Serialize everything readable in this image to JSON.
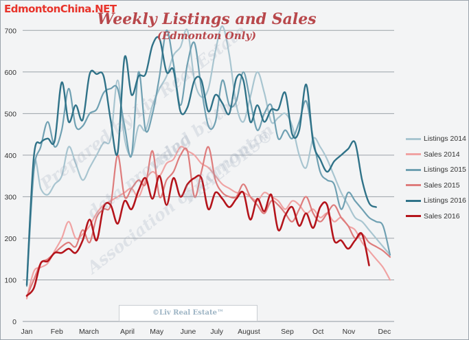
{
  "watermark_tag": "EdmontonChina.NET",
  "chart_data": {
    "type": "line",
    "title": "Weekly Listings and Sales",
    "subtitle": "(Edmonton Only)",
    "xlabel": "",
    "ylabel": "",
    "ylim": [
      0,
      750
    ],
    "yticks": [
      0,
      100,
      200,
      300,
      400,
      500,
      600,
      700
    ],
    "xlim": [
      0,
      52
    ],
    "x_tick_labels": [
      "Jan",
      "Feb",
      "March",
      "April",
      "May",
      "June",
      "July",
      "August",
      "Sep",
      "Oct",
      "Nov",
      "Dec"
    ],
    "x_tick_weeks": [
      0,
      4.3,
      8.9,
      14.4,
      18.6,
      23.1,
      27.2,
      31.8,
      37.3,
      41.7,
      46.1,
      51.2
    ],
    "grid": true,
    "legend_position": "right",
    "series": [
      {
        "name": "Listings 2014",
        "color": "#a8c5d0",
        "width": 2.2,
        "values": [
          90,
          380,
          320,
          305,
          330,
          350,
          420,
          380,
          340,
          370,
          400,
          430,
          440,
          580,
          440,
          400,
          470,
          460,
          520,
          560,
          590,
          640,
          660,
          700,
          580,
          540,
          560,
          650,
          710,
          640,
          520,
          480,
          540,
          600,
          550,
          480,
          490,
          500,
          470,
          400,
          370,
          440,
          420,
          390,
          350,
          310,
          280,
          250,
          240,
          220,
          200,
          180,
          160
        ]
      },
      {
        "name": "Sales 2014",
        "color": "#f0a3a3",
        "width": 2.2,
        "values": [
          55,
          120,
          130,
          140,
          170,
          200,
          240,
          200,
          210,
          230,
          260,
          280,
          290,
          300,
          310,
          320,
          300,
          340,
          360,
          350,
          380,
          390,
          420,
          410,
          400,
          380,
          370,
          350,
          330,
          320,
          310,
          310,
          300,
          290,
          310,
          300,
          290,
          270,
          290,
          280,
          260,
          270,
          250,
          260,
          240,
          250,
          230,
          220,
          190,
          170,
          150,
          130,
          100
        ]
      },
      {
        "name": "Listings 2015",
        "color": "#6fa0b2",
        "width": 2.2,
        "values": [
          85,
          360,
          420,
          480,
          420,
          460,
          560,
          470,
          470,
          500,
          510,
          550,
          560,
          560,
          470,
          400,
          600,
          460,
          500,
          590,
          700,
          620,
          520,
          620,
          670,
          560,
          470,
          480,
          580,
          520,
          530,
          600,
          530,
          460,
          500,
          520,
          440,
          460,
          440,
          480,
          530,
          440,
          360,
          340,
          330,
          270,
          310,
          290,
          270,
          250,
          240,
          230,
          160
        ]
      },
      {
        "name": "Sales 2015",
        "color": "#de7c7c",
        "width": 2.2,
        "values": [
          60,
          100,
          140,
          150,
          165,
          180,
          190,
          180,
          220,
          190,
          250,
          270,
          280,
          400,
          300,
          320,
          340,
          330,
          410,
          300,
          340,
          360,
          400,
          410,
          300,
          360,
          420,
          340,
          310,
          300,
          300,
          330,
          300,
          280,
          260,
          290,
          280,
          260,
          240,
          270,
          300,
          260,
          240,
          260,
          280,
          250,
          230,
          200,
          210,
          190,
          180,
          170,
          155
        ]
      },
      {
        "name": "Listings 2016",
        "color": "#2f7288",
        "width": 2.4,
        "values": [
          88,
          395,
          430,
          440,
          435,
          575,
          480,
          520,
          485,
          595,
          595,
          590,
          485,
          405,
          635,
          545,
          590,
          595,
          665,
          680,
          600,
          605,
          505,
          515,
          580,
          580,
          505,
          545,
          525,
          500,
          585,
          580,
          480,
          520,
          480,
          510,
          510,
          550,
          450,
          460,
          570,
          430,
          390,
          360,
          385,
          400,
          415,
          430,
          340,
          285,
          275
        ]
      },
      {
        "name": "Sales 2016",
        "color": "#b4141b",
        "width": 2.6,
        "values": [
          62,
          80,
          140,
          145,
          165,
          165,
          175,
          165,
          195,
          245,
          195,
          275,
          280,
          235,
          290,
          270,
          315,
          345,
          295,
          350,
          280,
          345,
          300,
          330,
          345,
          345,
          270,
          310,
          295,
          275,
          295,
          310,
          245,
          295,
          265,
          305,
          220,
          255,
          275,
          230,
          260,
          225,
          275,
          280,
          195,
          195,
          175,
          195,
          210,
          135
        ]
      }
    ]
  },
  "legend_items": [
    "Listings 2014",
    "Sales 2014",
    "Listings 2015",
    "Sales 2015",
    "Listings 2016",
    "Sales 2016"
  ],
  "watermark_lines": [
    "Prepared by Liv Real Estate",
    "using",
    "data provided by the",
    "REALTORS®",
    "Association of Edmonton"
  ],
  "copyright": "©Liv Real Estate™"
}
